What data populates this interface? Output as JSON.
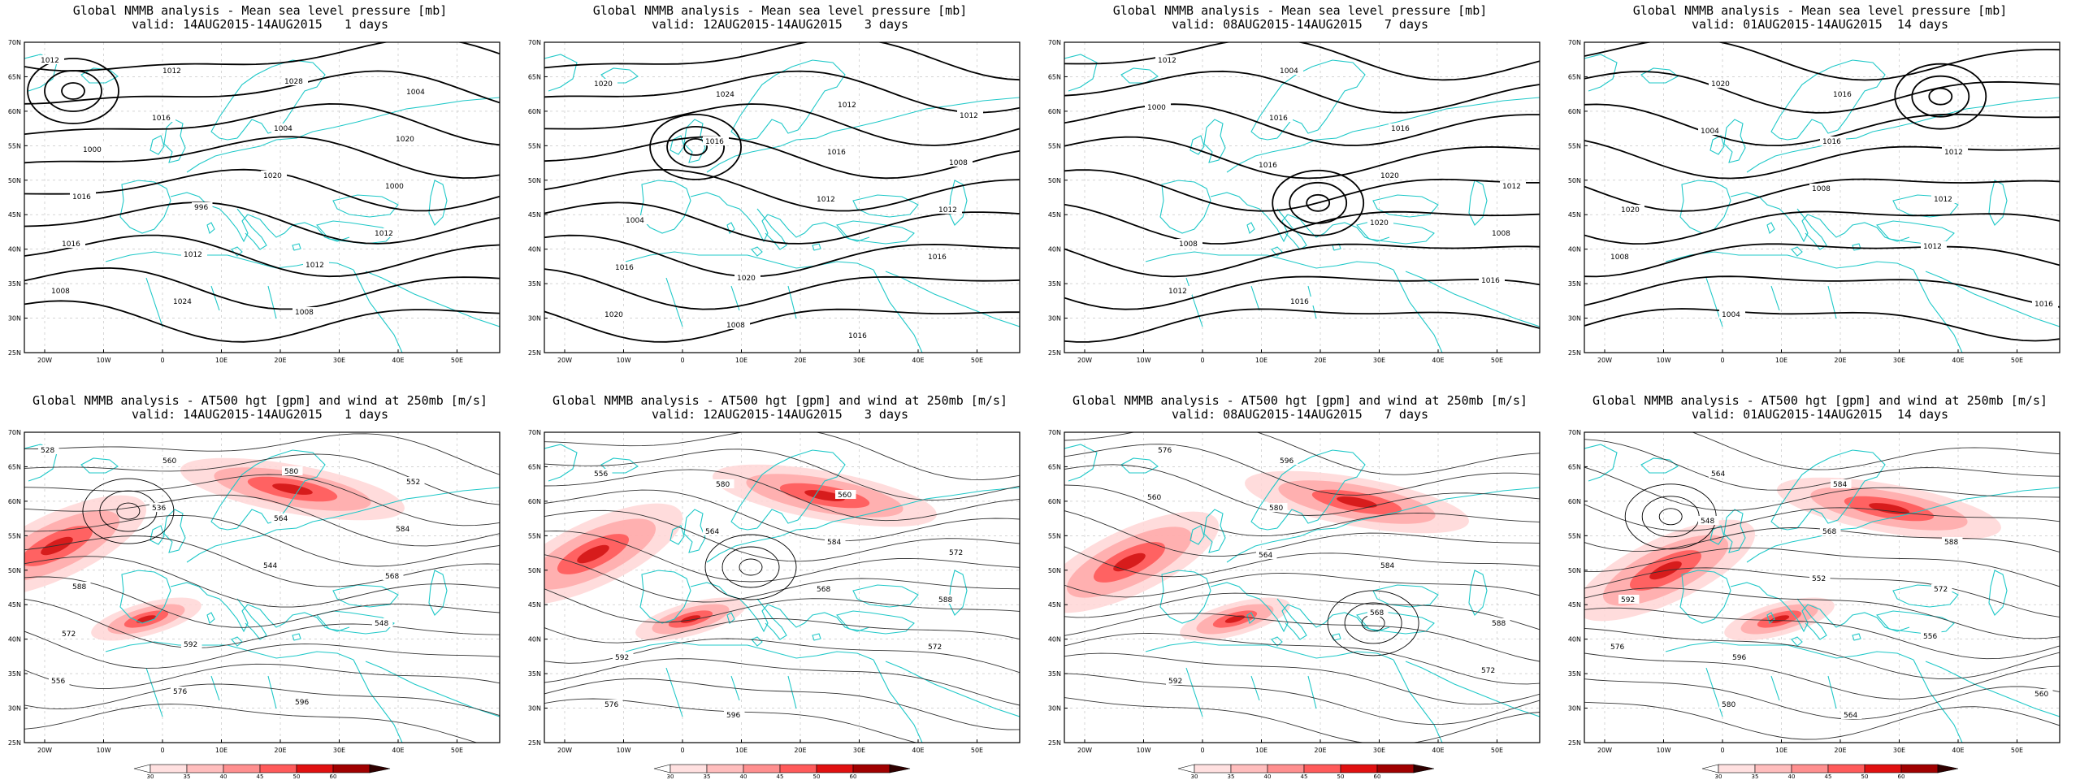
{
  "panels": [
    {
      "title": "Global NMMB analysis - Mean sea level pressure [mb]",
      "valid": "valid: 14AUG2015-14AUG2015   1 days",
      "kind": "mslp",
      "labels": [
        "1012",
        "1016",
        "1020",
        "1012",
        "1008",
        "1012",
        "1004",
        "1000",
        "1016",
        "1024",
        "1028",
        "1020",
        "1016",
        "1012",
        "1008",
        "1004",
        "1000",
        "996",
        "1012"
      ]
    },
    {
      "title": "Global NMMB analysis - Mean sea level pressure [mb]",
      "valid": "valid: 12AUG2015-14AUG2015   3 days",
      "kind": "mslp",
      "labels": [
        "1020",
        "1016",
        "1012",
        "1016",
        "1020",
        "1024",
        "1016",
        "1012",
        "1016",
        "1008",
        "1012",
        "1008",
        "1004",
        "1020",
        "1016",
        "1012"
      ]
    },
    {
      "title": "Global NMMB analysis - Mean sea level pressure [mb]",
      "valid": "valid: 08AUG2015-14AUG2015   7 days",
      "kind": "mslp",
      "labels": [
        "1000",
        "1016",
        "1020",
        "1016",
        "1012",
        "1016",
        "1020",
        "1008",
        "1012",
        "1004",
        "1016",
        "1012",
        "1008",
        "1016"
      ]
    },
    {
      "title": "Global NMMB analysis - Mean sea level pressure [mb]",
      "valid": "valid: 01AUG2015-14AUG2015  14 days",
      "kind": "mslp",
      "labels": [
        "1004",
        "1008",
        "1012",
        "1016",
        "1020",
        "1016",
        "1012",
        "1008",
        "1004",
        "1016",
        "1012",
        "1020"
      ]
    },
    {
      "title": "Global NMMB analysis - AT500 hgt [gpm] and wind at 250mb [m/s]",
      "valid": "valid: 14AUG2015-14AUG2015   1 days",
      "kind": "z500",
      "labels": [
        "528",
        "536",
        "544",
        "548",
        "556",
        "560",
        "564",
        "568",
        "572",
        "576",
        "580",
        "584",
        "588",
        "592",
        "596",
        "552"
      ]
    },
    {
      "title": "Global NMMB analysis - AT500 hgt [gpm] and wind at 250mb [m/s]",
      "valid": "valid: 12AUG2015-14AUG2015   3 days",
      "kind": "z500",
      "labels": [
        "556",
        "564",
        "568",
        "572",
        "576",
        "580",
        "584",
        "588",
        "592",
        "596",
        "560",
        "572"
      ]
    },
    {
      "title": "Global NMMB analysis - AT500 hgt [gpm] and wind at 250mb [m/s]",
      "valid": "valid: 08AUG2015-14AUG2015   7 days",
      "kind": "z500",
      "labels": [
        "560",
        "564",
        "568",
        "572",
        "576",
        "580",
        "584",
        "588",
        "592",
        "596"
      ]
    },
    {
      "title": "Global NMMB analysis - AT500 hgt [gpm] and wind at 250mb [m/s]",
      "valid": "valid: 01AUG2015-14AUG2015  14 days",
      "kind": "z500",
      "labels": [
        "548",
        "552",
        "556",
        "560",
        "564",
        "568",
        "572",
        "576",
        "580",
        "584",
        "588",
        "592",
        "596",
        "564"
      ]
    }
  ],
  "axes": {
    "lat_ticks": [
      "70N",
      "65N",
      "60N",
      "55N",
      "50N",
      "45N",
      "40N",
      "35N",
      "30N",
      "25N"
    ],
    "lon_ticks": [
      "20W",
      "10W",
      "0",
      "10E",
      "20E",
      "30E",
      "40E",
      "50E"
    ]
  },
  "colorbar": {
    "ticks": [
      "30",
      "35",
      "40",
      "45",
      "50",
      "60"
    ],
    "colors": [
      "#ffffff",
      "#ffe0e0",
      "#ffbdbd",
      "#ff8f8f",
      "#ff5a5a",
      "#e01010",
      "#a00000",
      "#300000"
    ]
  },
  "colors": {
    "coast": "#1fc8c8",
    "contour": "#000000",
    "jet": "#ff6f6f"
  }
}
